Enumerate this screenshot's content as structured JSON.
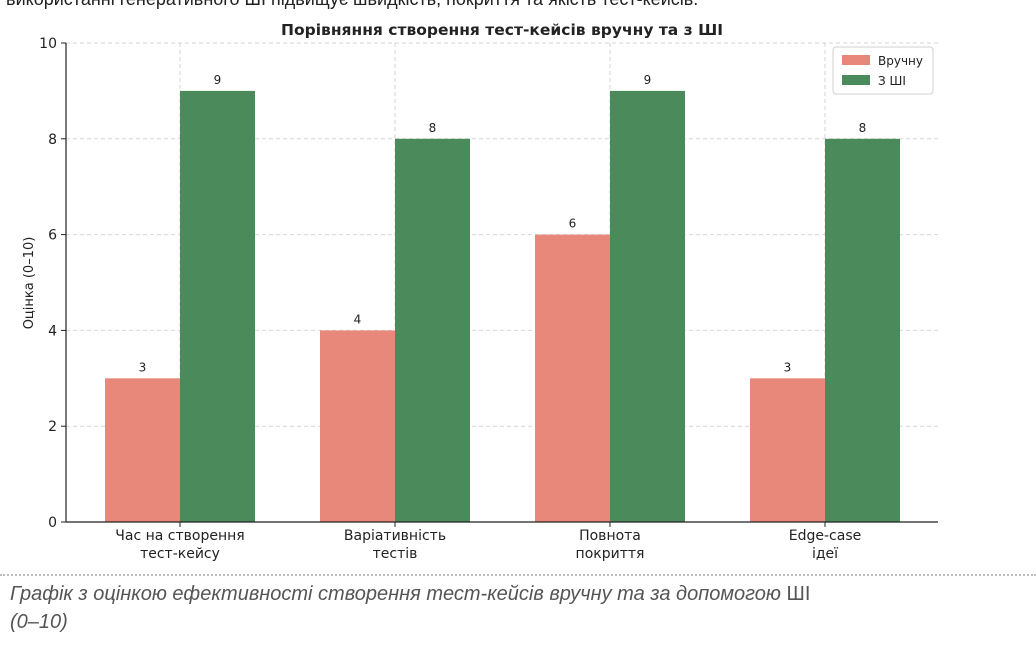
{
  "header_text": "використанні генеративного ШІ підвищує швидкість, покриття та якість тест-кейсів.",
  "chart_data": {
    "type": "bar",
    "title": "Порівняння створення тест-кейсів вручну та з ШІ",
    "xlabel": "",
    "ylabel": "Оцінка (0–10)",
    "ylim": [
      0,
      10
    ],
    "yticks": [
      "0",
      "2",
      "4",
      "6",
      "8",
      "10"
    ],
    "grid": true,
    "legend_position": "top-right",
    "categories": [
      [
        "Час на створення",
        "тест-кейсу"
      ],
      [
        "Варіативність",
        "тестів"
      ],
      [
        "Повнота",
        "покриття"
      ],
      [
        "Edge-case",
        "ідеї"
      ]
    ],
    "series": [
      {
        "name": "Вручну",
        "color": "#e8887a",
        "values": [
          3,
          4,
          6,
          3
        ]
      },
      {
        "name": "З ШІ",
        "color": "#4a8a5b",
        "values": [
          9,
          8,
          9,
          8
        ]
      }
    ]
  },
  "caption": {
    "italic": "Графік з оцінкою ефективності створення тест-кейсів вручну та за допомогою ",
    "normal": "ШІ",
    "italic2": "(0–10)"
  }
}
